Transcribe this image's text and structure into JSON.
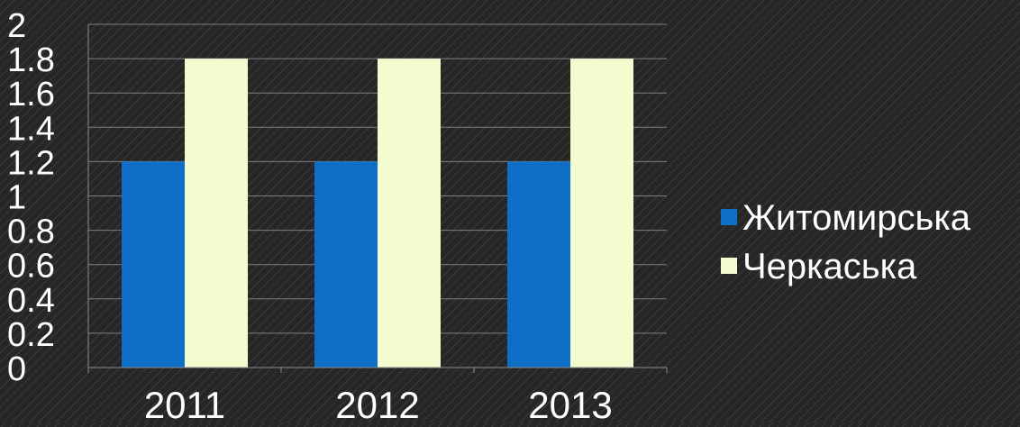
{
  "chart_data": {
    "type": "bar",
    "title": "",
    "xlabel": "",
    "ylabel": "",
    "categories": [
      "2011",
      "2012",
      "2013"
    ],
    "series": [
      {
        "name": "Житомирська",
        "values": [
          1.2,
          1.2,
          1.2
        ],
        "color": "#0f6fc6"
      },
      {
        "name": "Черкаська",
        "values": [
          1.8,
          1.8,
          1.8
        ],
        "color": "#f2fccf"
      }
    ],
    "ylim": [
      0,
      2
    ],
    "yticks": [
      "0",
      "0.2",
      "0.4",
      "0.6",
      "0.8",
      "1",
      "1.2",
      "1.4",
      "1.6",
      "1.8",
      "2"
    ],
    "grid": true,
    "legend": "right",
    "colors": {
      "background": "#262626",
      "gridline": "#7f7f7f",
      "axis": "#8c8c8c",
      "text": "#ffffff"
    }
  }
}
